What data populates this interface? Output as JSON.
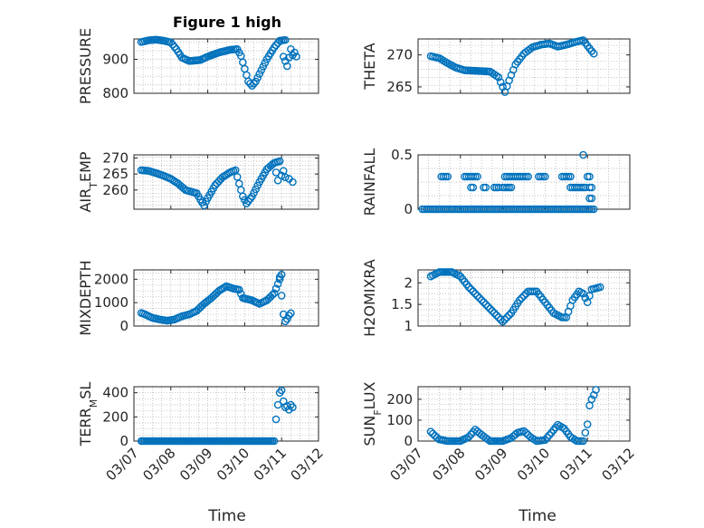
{
  "figure": {
    "title": "Figure 1 high",
    "marker_color": "#0072bd",
    "xlabel": "Time",
    "xticklabels": [
      "03/07",
      "03/08",
      "03/09",
      "03/10",
      "03/11",
      "03/12"
    ],
    "x_range": [
      "03/07",
      "03/12"
    ]
  },
  "chart_data": [
    {
      "type": "scatter",
      "ylabel_parts": [
        [
          "PRESSURE",
          ""
        ]
      ],
      "ylim": [
        800,
        960
      ],
      "yticks": [
        800,
        900
      ],
      "grid": true,
      "keypoints": [
        [
          7.2,
          951
        ],
        [
          7.4,
          956
        ],
        [
          7.6,
          958
        ],
        [
          7.8,
          955
        ],
        [
          8.0,
          950
        ],
        [
          8.15,
          930
        ],
        [
          8.3,
          905
        ],
        [
          8.5,
          895
        ],
        [
          8.8,
          898
        ],
        [
          9.0,
          908
        ],
        [
          9.3,
          920
        ],
        [
          9.6,
          928
        ],
        [
          9.8,
          930
        ],
        [
          9.9,
          910
        ],
        [
          10.0,
          872
        ],
        [
          10.1,
          835
        ],
        [
          10.2,
          822
        ],
        [
          10.3,
          835
        ],
        [
          10.45,
          868
        ],
        [
          10.6,
          900
        ],
        [
          10.8,
          935
        ],
        [
          10.95,
          955
        ],
        [
          11.1,
          957
        ]
      ],
      "extra": [
        [
          11.05,
          908
        ],
        [
          11.1,
          895
        ],
        [
          11.15,
          880
        ],
        [
          11.2,
          905
        ],
        [
          11.25,
          930
        ],
        [
          11.3,
          912
        ],
        [
          11.35,
          920
        ],
        [
          11.4,
          908
        ]
      ]
    },
    {
      "type": "scatter",
      "ylabel_parts": [
        [
          "THETA",
          ""
        ]
      ],
      "ylim": [
        264,
        272.5
      ],
      "yticks": [
        265,
        270
      ],
      "grid": true,
      "keypoints": [
        [
          7.3,
          269.8
        ],
        [
          7.5,
          269.5
        ],
        [
          7.7,
          268.7
        ],
        [
          7.9,
          268.0
        ],
        [
          8.1,
          267.6
        ],
        [
          8.4,
          267.5
        ],
        [
          8.7,
          267.4
        ],
        [
          8.9,
          266.5
        ],
        [
          9.0,
          265.0
        ],
        [
          9.05,
          264.2
        ],
        [
          9.15,
          266
        ],
        [
          9.3,
          268.5
        ],
        [
          9.5,
          270.2
        ],
        [
          9.7,
          271.2
        ],
        [
          9.9,
          271.6
        ],
        [
          10.1,
          271.8
        ],
        [
          10.3,
          271.3
        ],
        [
          10.5,
          271.6
        ],
        [
          10.7,
          272.0
        ],
        [
          10.9,
          272.3
        ],
        [
          11.05,
          271.0
        ],
        [
          11.15,
          270.2
        ]
      ],
      "extra": []
    },
    {
      "type": "scatter",
      "ylabel_parts": [
        [
          "AIR",
          ""
        ],
        [
          "T",
          "sub"
        ],
        [
          "EMP",
          ""
        ]
      ],
      "ylim": [
        254,
        271
      ],
      "yticks": [
        260,
        265,
        270
      ],
      "grid": true,
      "keypoints": [
        [
          7.2,
          266.2
        ],
        [
          7.4,
          266.0
        ],
        [
          7.6,
          265.3
        ],
        [
          7.8,
          264.5
        ],
        [
          8.0,
          263.5
        ],
        [
          8.2,
          262.0
        ],
        [
          8.4,
          260.0
        ],
        [
          8.55,
          259.5
        ],
        [
          8.7,
          259.0
        ],
        [
          8.8,
          257.0
        ],
        [
          8.9,
          255.2
        ],
        [
          9.0,
          257.5
        ],
        [
          9.2,
          261.5
        ],
        [
          9.4,
          264.0
        ],
        [
          9.6,
          265.5
        ],
        [
          9.75,
          266.2
        ],
        [
          9.85,
          262.0
        ],
        [
          9.95,
          258.0
        ],
        [
          10.05,
          255.8
        ],
        [
          10.2,
          258.0
        ],
        [
          10.4,
          262.5
        ],
        [
          10.6,
          266.5
        ],
        [
          10.8,
          268.5
        ],
        [
          10.95,
          269.0
        ]
      ],
      "extra": [
        [
          10.85,
          265.5
        ],
        [
          10.9,
          263.0
        ],
        [
          11.0,
          264.5
        ],
        [
          11.1,
          264.0
        ],
        [
          11.2,
          263.5
        ],
        [
          11.3,
          262.5
        ],
        [
          11.05,
          266
        ]
      ]
    },
    {
      "type": "scatter",
      "ylabel_parts": [
        [
          "RAINFALL",
          ""
        ]
      ],
      "ylim": [
        0,
        0.5
      ],
      "yticks": [
        0,
        0.5
      ],
      "grid": true,
      "keypoints": [],
      "rain_zero": [
        [
          7.1,
          11.2
        ]
      ],
      "rain_high": [
        [
          7.55,
          7.7,
          0.3
        ],
        [
          8.1,
          8.4,
          0.3
        ],
        [
          8.25,
          8.3,
          0.2
        ],
        [
          8.55,
          8.6,
          0.2
        ],
        [
          8.8,
          8.9,
          0.2
        ],
        [
          9.05,
          9.6,
          0.3
        ],
        [
          9.0,
          9.1,
          0.2
        ],
        [
          9.15,
          9.2,
          0.2
        ],
        [
          9.85,
          10.0,
          0.3
        ],
        [
          10.4,
          10.6,
          0.3
        ],
        [
          10.6,
          10.8,
          0.2
        ],
        [
          10.85,
          10.95,
          0.2
        ],
        [
          11.0,
          11.05,
          0.3
        ],
        [
          10.9,
          10.9,
          0.5
        ],
        [
          11.05,
          11.1,
          0.2
        ],
        [
          11.05,
          11.1,
          0.1
        ]
      ]
    },
    {
      "type": "scatter",
      "ylabel_parts": [
        [
          "MIXDEPTH",
          ""
        ]
      ],
      "ylim": [
        0,
        2400
      ],
      "yticks": [
        0,
        1000,
        2000
      ],
      "grid": true,
      "keypoints": [
        [
          7.2,
          560
        ],
        [
          7.3,
          500
        ],
        [
          7.5,
          350
        ],
        [
          7.7,
          280
        ],
        [
          7.9,
          230
        ],
        [
          8.1,
          280
        ],
        [
          8.3,
          420
        ],
        [
          8.5,
          500
        ],
        [
          8.7,
          650
        ],
        [
          8.9,
          950
        ],
        [
          9.1,
          1200
        ],
        [
          9.3,
          1500
        ],
        [
          9.5,
          1700
        ],
        [
          9.7,
          1600
        ],
        [
          9.85,
          1550
        ],
        [
          9.95,
          1200
        ],
        [
          10.2,
          1100
        ],
        [
          10.4,
          950
        ],
        [
          10.6,
          1100
        ],
        [
          10.8,
          1400
        ],
        [
          10.9,
          1800
        ],
        [
          11.0,
          2200
        ]
      ],
      "extra": [
        [
          10.95,
          2100
        ],
        [
          11.0,
          1300
        ],
        [
          11.05,
          500
        ],
        [
          11.1,
          200
        ],
        [
          11.15,
          300
        ],
        [
          11.2,
          450
        ],
        [
          11.25,
          550
        ]
      ]
    },
    {
      "type": "scatter",
      "ylabel_parts": [
        [
          "H2OMIXRA",
          ""
        ]
      ],
      "ylim": [
        1,
        2.3
      ],
      "yticks": [
        1,
        1.5,
        2
      ],
      "grid": true,
      "keypoints": [
        [
          7.3,
          2.15
        ],
        [
          7.5,
          2.25
        ],
        [
          7.8,
          2.25
        ],
        [
          8.0,
          2.15
        ],
        [
          8.2,
          1.9
        ],
        [
          8.4,
          1.7
        ],
        [
          8.6,
          1.5
        ],
        [
          8.8,
          1.3
        ],
        [
          9.0,
          1.1
        ],
        [
          9.2,
          1.3
        ],
        [
          9.4,
          1.6
        ],
        [
          9.6,
          1.8
        ],
        [
          9.8,
          1.8
        ],
        [
          10.0,
          1.55
        ],
        [
          10.2,
          1.3
        ],
        [
          10.4,
          1.2
        ],
        [
          10.5,
          1.2
        ],
        [
          10.65,
          1.6
        ],
        [
          10.8,
          1.8
        ],
        [
          10.9,
          1.75
        ],
        [
          11.0,
          1.55
        ],
        [
          11.1,
          1.85
        ],
        [
          11.3,
          1.9
        ]
      ],
      "extra": []
    },
    {
      "type": "scatter",
      "ylabel_parts": [
        [
          "TERR",
          ""
        ],
        [
          "M",
          "sub"
        ],
        [
          "SL",
          ""
        ]
      ],
      "ylim": [
        0,
        450
      ],
      "yticks": [
        0,
        200,
        400
      ],
      "grid": true,
      "keypoints": [
        [
          7.2,
          0
        ],
        [
          8.0,
          0
        ],
        [
          9.0,
          0
        ],
        [
          10.0,
          0
        ],
        [
          10.75,
          0
        ],
        [
          10.8,
          0
        ]
      ],
      "extra": [
        [
          10.85,
          180
        ],
        [
          10.9,
          300
        ],
        [
          10.95,
          400
        ],
        [
          11.0,
          420
        ],
        [
          11.05,
          330
        ],
        [
          11.1,
          280
        ],
        [
          11.15,
          290
        ],
        [
          11.2,
          260
        ],
        [
          11.25,
          300
        ],
        [
          11.3,
          280
        ]
      ]
    },
    {
      "type": "scatter",
      "ylabel_parts": [
        [
          "SUN",
          ""
        ],
        [
          "F",
          "sub"
        ],
        [
          "LUX",
          ""
        ]
      ],
      "ylim": [
        0,
        260
      ],
      "yticks": [
        0,
        100,
        200
      ],
      "grid": true,
      "keypoints": [
        [
          7.3,
          45
        ],
        [
          7.4,
          25
        ],
        [
          7.5,
          8
        ],
        [
          7.7,
          0
        ],
        [
          8.0,
          0
        ],
        [
          8.2,
          20
        ],
        [
          8.35,
          55
        ],
        [
          8.5,
          30
        ],
        [
          8.7,
          0
        ],
        [
          9.0,
          0
        ],
        [
          9.2,
          15
        ],
        [
          9.35,
          40
        ],
        [
          9.5,
          48
        ],
        [
          9.65,
          20
        ],
        [
          9.8,
          0
        ],
        [
          10.0,
          5
        ],
        [
          10.15,
          40
        ],
        [
          10.3,
          78
        ],
        [
          10.45,
          60
        ],
        [
          10.6,
          20
        ],
        [
          10.75,
          0
        ],
        [
          10.9,
          0
        ]
      ],
      "extra": [
        [
          10.95,
          40
        ],
        [
          11.0,
          80
        ],
        [
          11.05,
          170
        ],
        [
          11.1,
          200
        ],
        [
          11.15,
          220
        ],
        [
          11.2,
          245
        ]
      ]
    }
  ]
}
